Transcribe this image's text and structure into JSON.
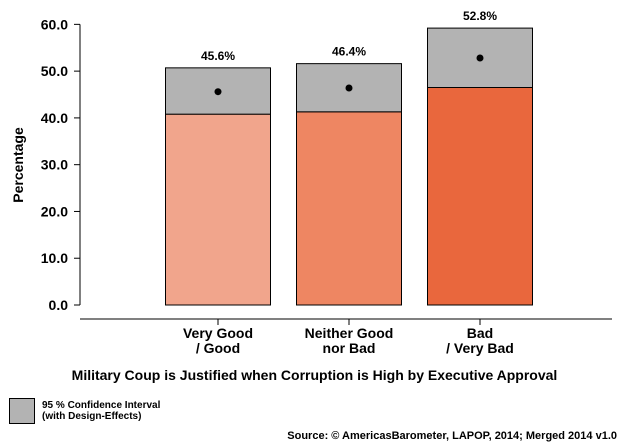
{
  "chart_data": {
    "type": "bar",
    "categories": [
      [
        "Very Good",
        "/ Good"
      ],
      [
        "Neither Good",
        "nor Bad"
      ],
      [
        "Bad",
        "/ Very Bad"
      ]
    ],
    "values": [
      45.6,
      46.4,
      52.8
    ],
    "value_labels": [
      "45.6%",
      "46.4%",
      "52.8%"
    ],
    "ci_lower": [
      40.8,
      41.3,
      46.5
    ],
    "ci_upper": [
      50.7,
      51.6,
      59.2
    ],
    "bar_colors": [
      "#f1a58c",
      "#ee8662",
      "#e9673d"
    ],
    "ci_color": "#b3b3b3",
    "ylabel": "Percentage",
    "xlabel": "Military Coup is Justified when Corruption is High by Executive Approval",
    "ylim": [
      0,
      62
    ],
    "yticks": [
      0,
      10,
      20,
      30,
      40,
      50,
      60
    ],
    "ytick_labels": [
      "0.0",
      "10.0",
      "20.0",
      "30.0",
      "40.0",
      "50.0",
      "60.0"
    ],
    "grid": false,
    "legend_position": "bottom-left"
  },
  "legend": {
    "line1": "95 % Confidence Interval",
    "line2": "(with Design-Effects)"
  },
  "source": "Source: © AmericasBarometer, LAPOP, 2014; Merged 2014 v1.0"
}
